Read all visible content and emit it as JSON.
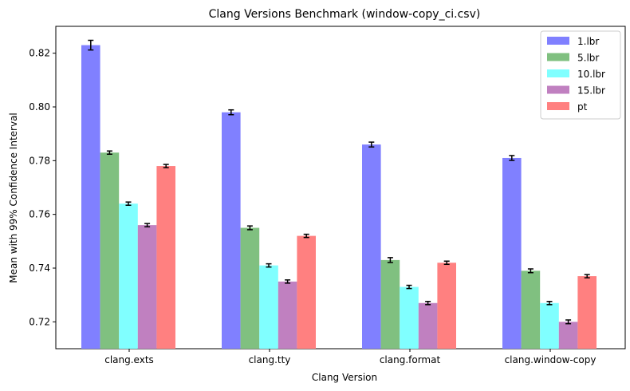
{
  "chart_data": {
    "type": "bar",
    "title": "Clang Versions Benchmark (window-copy_ci.csv)",
    "xlabel": "Clang Version",
    "ylabel": "Mean with 99% Confidence Interval",
    "categories": [
      "clang.exts",
      "clang.tty",
      "clang.format",
      "clang.window-copy"
    ],
    "ylim": [
      0.71,
      0.83
    ],
    "yticks": [
      0.72,
      0.74,
      0.76,
      0.78,
      0.8,
      0.82
    ],
    "ytick_labels": [
      "0.72",
      "0.74",
      "0.76",
      "0.78",
      "0.80",
      "0.82"
    ],
    "legend_position": "top-right",
    "grid": false,
    "series": [
      {
        "name": "1.lbr",
        "color": "#8080ff",
        "values": [
          0.823,
          0.798,
          0.786,
          0.781
        ],
        "errors": [
          0.0018,
          0.0009,
          0.0009,
          0.0009
        ]
      },
      {
        "name": "5.lbr",
        "color": "#80c080",
        "values": [
          0.783,
          0.755,
          0.743,
          0.739
        ],
        "errors": [
          0.0006,
          0.0007,
          0.0009,
          0.0007
        ]
      },
      {
        "name": "10.lbr",
        "color": "#80ffff",
        "values": [
          0.764,
          0.741,
          0.733,
          0.727
        ],
        "errors": [
          0.0006,
          0.0006,
          0.0006,
          0.0006
        ]
      },
      {
        "name": "15.lbr",
        "color": "#c080c0",
        "values": [
          0.756,
          0.735,
          0.727,
          0.72
        ],
        "errors": [
          0.0006,
          0.0006,
          0.0006,
          0.0007
        ]
      },
      {
        "name": "pt",
        "color": "#ff8080",
        "values": [
          0.778,
          0.752,
          0.742,
          0.737
        ],
        "errors": [
          0.0006,
          0.0006,
          0.0006,
          0.0006
        ]
      }
    ]
  }
}
